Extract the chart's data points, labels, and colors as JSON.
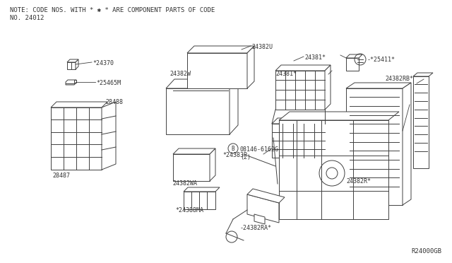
{
  "bg_color": "#ffffff",
  "line_color": "#404040",
  "text_color": "#333333",
  "note_line1": "NOTE: CODE NOS. WITH * ✱ * ARE COMPONENT PARTS OF CODE",
  "note_line2": "NO. 24012",
  "watermark": "R24000GB",
  "fig_w": 6.4,
  "fig_h": 3.72,
  "dpi": 100
}
